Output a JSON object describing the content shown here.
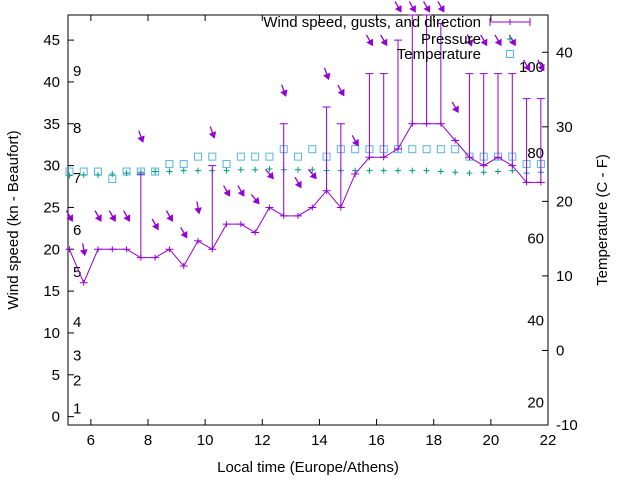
{
  "chart_data": {
    "type": "line",
    "xlabel": "Local time (Europe/Athens)",
    "ylabel_left": "Wind speed (kn - Beaufort)",
    "ylabel_right": "Temperature (C - F)",
    "xlim": [
      5.2,
      22
    ],
    "ylim_left": [
      -1,
      48
    ],
    "ylim_right": [
      -10,
      45
    ],
    "x_ticks": [
      "6",
      "8",
      "10",
      "12",
      "14",
      "16",
      "18",
      "20",
      "22"
    ],
    "y_left_ticks": [
      "0",
      "5",
      "10",
      "15",
      "20",
      "25",
      "30",
      "35",
      "40",
      "45"
    ],
    "y_right_ticks": [
      "-10",
      "0",
      "10",
      "20",
      "30",
      "40"
    ],
    "beaufort_labels": [
      {
        "text": "1",
        "knots": 1.0
      },
      {
        "text": "2",
        "knots": 4.3
      },
      {
        "text": "3",
        "knots": 7.3
      },
      {
        "text": "4",
        "knots": 11.3
      },
      {
        "text": "5",
        "knots": 17.3
      },
      {
        "text": "6",
        "knots": 22.3
      },
      {
        "text": "7",
        "knots": 28.5
      },
      {
        "text": "8",
        "knots": 34.5
      },
      {
        "text": "9",
        "knots": 41.3
      }
    ],
    "fahrenheit_labels": [
      {
        "text": "20",
        "celsius": -7.0
      },
      {
        "text": "40",
        "celsius": 4.0
      },
      {
        "text": "60",
        "celsius": 15.0
      },
      {
        "text": "80",
        "celsius": 26.5
      },
      {
        "text": "100",
        "celsius": 38.0
      }
    ],
    "series": [
      {
        "name": "Wind speed, gusts, and direction",
        "color": "#9400d3",
        "x": [
          5.25,
          5.75,
          6.25,
          6.75,
          7.25,
          7.75,
          8.25,
          8.75,
          9.25,
          9.75,
          10.25,
          10.75,
          11.25,
          11.75,
          12.25,
          12.75,
          13.25,
          13.75,
          14.25,
          14.75,
          15.25,
          15.75,
          16.25,
          16.75,
          17.25,
          17.75,
          18.25,
          18.75,
          19.25,
          19.75,
          20.25,
          20.75,
          21.25,
          21.75
        ],
        "speed": [
          20,
          16,
          20,
          20,
          20,
          19,
          19,
          20,
          18,
          21,
          20,
          23,
          23,
          22,
          25,
          24,
          24,
          25,
          27,
          25,
          29,
          31,
          31,
          32,
          35,
          35,
          35,
          33,
          31,
          30,
          31,
          30,
          28,
          28
        ],
        "gust": [
          20,
          16,
          20,
          20,
          20,
          29,
          19,
          20,
          18,
          21,
          30,
          23,
          23,
          22,
          25,
          35,
          24,
          25,
          37,
          35,
          29,
          41,
          41,
          45,
          48,
          48,
          47,
          33,
          41,
          41,
          41,
          41,
          38,
          38
        ],
        "arrow_y": [
          24,
          20,
          24,
          24,
          24,
          33.5,
          23,
          24,
          22,
          25,
          34,
          27,
          27,
          26,
          29,
          39,
          28,
          29,
          41,
          39,
          33,
          45,
          45,
          49,
          49,
          49,
          49,
          37,
          45,
          45,
          45,
          45,
          42,
          42
        ],
        "direction_deg": [
          330,
          350,
          330,
          330,
          330,
          340,
          330,
          330,
          330,
          350,
          340,
          330,
          330,
          320,
          320,
          340,
          330,
          320,
          340,
          330,
          330,
          330,
          330,
          330,
          330,
          330,
          330,
          330,
          340,
          330,
          330,
          330,
          330,
          330
        ]
      },
      {
        "name": "Pressure",
        "color": "#009e73",
        "x": [
          5.25,
          5.75,
          6.25,
          6.75,
          7.25,
          7.75,
          8.25,
          8.75,
          9.25,
          9.75,
          10.25,
          10.75,
          11.25,
          11.75,
          12.25,
          12.75,
          13.25,
          13.75,
          14.25,
          14.75,
          15.25,
          15.75,
          16.25,
          16.75,
          17.25,
          17.75,
          18.25,
          18.75,
          19.25,
          19.75,
          20.25,
          20.75,
          21.25,
          21.75
        ],
        "y": [
          28.8,
          28.9,
          28.9,
          29.0,
          29.1,
          29.2,
          29.3,
          29.3,
          29.4,
          29.4,
          29.4,
          29.4,
          29.5,
          29.5,
          29.6,
          29.5,
          29.5,
          29.5,
          29.4,
          29.4,
          29.4,
          29.4,
          29.4,
          29.4,
          29.4,
          29.4,
          29.3,
          29.2,
          29.1,
          29.2,
          29.3,
          29.4,
          29.1,
          29.2
        ]
      },
      {
        "name": "Temperature",
        "color": "#56b4e9",
        "x": [
          5.25,
          5.75,
          6.25,
          6.75,
          7.25,
          7.75,
          8.25,
          8.75,
          9.25,
          9.75,
          10.25,
          10.75,
          11.25,
          11.75,
          12.25,
          12.75,
          13.25,
          13.75,
          14.25,
          14.75,
          15.25,
          15.75,
          16.25,
          16.75,
          17.25,
          17.75,
          18.25,
          18.75,
          19.25,
          19.75,
          20.25,
          20.75,
          21.25,
          21.75
        ],
        "y": [
          24,
          24,
          24,
          23,
          24,
          24,
          24,
          25,
          25,
          26,
          26,
          25,
          26,
          26,
          26,
          27,
          26,
          27,
          26,
          27,
          27,
          27,
          27,
          27,
          27,
          27,
          27,
          27,
          26,
          26,
          26,
          26,
          25,
          25
        ]
      }
    ],
    "legend_placement": "top-right",
    "grid": false
  }
}
